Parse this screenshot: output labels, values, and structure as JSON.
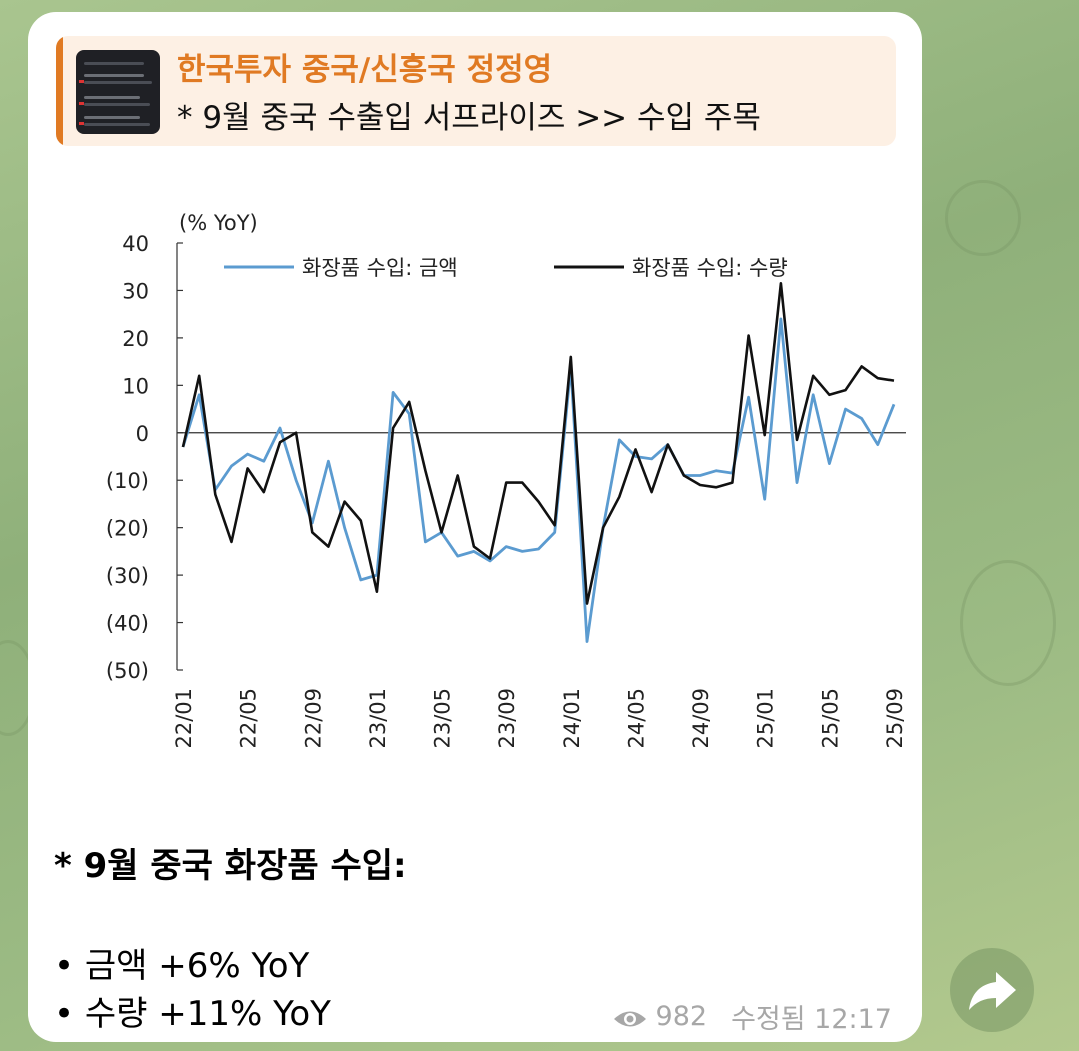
{
  "reply": {
    "title": "한국투자 중국/신흥국 정정영",
    "subtitle": "* 9월 중국 수출입 서프라이즈  >> 수입 주목"
  },
  "chart_data": {
    "type": "line",
    "ylabel": "(% YoY)",
    "ylim": [
      -50,
      40
    ],
    "yticks": [
      40,
      30,
      20,
      10,
      0,
      -10,
      -20,
      -30,
      -40,
      -50
    ],
    "ytick_labels": [
      "40",
      "30",
      "20",
      "10",
      "0",
      "(10)",
      "(20)",
      "(30)",
      "(40)",
      "(50)"
    ],
    "x_tick_labels": [
      "22/01",
      "22/05",
      "22/09",
      "23/01",
      "23/05",
      "23/09",
      "24/01",
      "24/05",
      "24/09",
      "25/01",
      "25/05",
      "25/09"
    ],
    "series": [
      {
        "name": "화장품 수입: 금액",
        "color": "#5b9bd0",
        "values": [
          -3,
          8,
          -12,
          -7,
          -4.5,
          -6,
          1,
          -10,
          -19,
          -6,
          -20,
          -31,
          -30,
          8.5,
          4,
          -23,
          -21,
          -26,
          -25,
          -27,
          -24,
          -25,
          -24.5,
          -21,
          14,
          -44,
          -20,
          -1.5,
          -5,
          -5.5,
          -2.5,
          -9,
          -9,
          -8,
          -8.5,
          7.5,
          -14,
          24,
          -10.5,
          8,
          -6.5,
          5,
          3,
          -2.5,
          6
        ]
      },
      {
        "name": "화장품 수입: 수량",
        "color": "#111111",
        "values": [
          -3,
          12,
          -13,
          -23,
          -7.5,
          -12.5,
          -2,
          0,
          -21,
          -24,
          -14.5,
          -18.5,
          -33.5,
          1,
          6.5,
          -8,
          -21,
          -9,
          -24,
          -26.5,
          -10.5,
          -10.5,
          -14.5,
          -19.5,
          16,
          -36,
          -20,
          -13.5,
          -3.5,
          -12.5,
          -2.5,
          -9,
          -11,
          -11.5,
          -10.5,
          20.5,
          -0.5,
          31.5,
          -1.5,
          12,
          8,
          9,
          14,
          11.5,
          11
        ]
      }
    ],
    "grid": false,
    "legend_position": "top"
  },
  "message": {
    "heading": "* 9월 중국 화장품 수입:",
    "bullets": [
      "• 금액 +6% YoY",
      "• 수량 +11% YoY"
    ]
  },
  "meta": {
    "views": "982",
    "edited_time": "수정됨 12:17"
  },
  "icons": {
    "views": "eye-icon",
    "forward": "forward-arrow-icon"
  },
  "colors": {
    "accent": "#e07a23",
    "reply_bg": "#fdf0e4",
    "meta_text": "#a7a7a7"
  }
}
